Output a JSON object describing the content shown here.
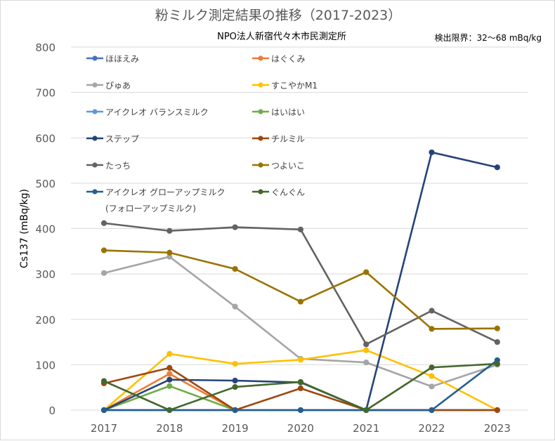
{
  "chart_data": {
    "type": "line",
    "title": "粉ミルク測定結果の推移（2017-2023）",
    "subtitle": "NPO法人新宿代々木市民測定所",
    "note": "検出限界：32〜68 mBq/kg",
    "ylabel": "Cs137 (mBq/kg)",
    "xlabel": "",
    "ylim": [
      0,
      800
    ],
    "yticks": [
      0,
      100,
      200,
      300,
      400,
      500,
      600,
      700,
      800
    ],
    "x": [
      "2017",
      "2018",
      "2019",
      "2020",
      "2021",
      "2022",
      "2023"
    ],
    "grid": "horizontal",
    "legend_position": "top-left, inside plot, two columns",
    "series": [
      {
        "name": "ほほえみ",
        "color": "#4472c4",
        "values": [
          0,
          0,
          0,
          0,
          0,
          0,
          0
        ]
      },
      {
        "name": "はぐくみ",
        "color": "#ed7d31",
        "values": [
          0,
          80,
          0,
          null,
          null,
          null,
          null
        ]
      },
      {
        "name": "ぴゅあ",
        "color": "#a5a5a5",
        "values": [
          302,
          338,
          228,
          113,
          105,
          52,
          100
        ]
      },
      {
        "name": "すこやかM1",
        "color": "#ffc000",
        "values": [
          0,
          124,
          102,
          111,
          132,
          75,
          0
        ]
      },
      {
        "name": "アイクレオ バランスミルク",
        "color": "#5b9bd5",
        "values": [
          0,
          0,
          0,
          0,
          0,
          0,
          0
        ]
      },
      {
        "name": "はいはい",
        "color": "#70ad47",
        "values": [
          0,
          53,
          0,
          null,
          null,
          null,
          null
        ]
      },
      {
        "name": "ステップ",
        "color": "#264478",
        "values": [
          0,
          67,
          65,
          61,
          0,
          568,
          535
        ]
      },
      {
        "name": "チルミル",
        "color": "#9e480e",
        "values": [
          59,
          93,
          0,
          48,
          0,
          0,
          0
        ]
      },
      {
        "name": "たっち",
        "color": "#636363",
        "values": [
          412,
          395,
          403,
          398,
          145,
          219,
          150
        ]
      },
      {
        "name": "つよいこ",
        "color": "#997300",
        "values": [
          352,
          347,
          311,
          239,
          304,
          179,
          180
        ]
      },
      {
        "name": "アイクレオ グローアップミルク (フォローアップミルク)",
        "name_lines": [
          "アイクレオ グローアップミルク",
          "(フォローアップミルク)"
        ],
        "color": "#255e91",
        "values": [
          0,
          0,
          0,
          0,
          0,
          0,
          110
        ]
      },
      {
        "name": "ぐんぐん",
        "color": "#43682b",
        "values": [
          64,
          0,
          51,
          62,
          0,
          94,
          102
        ]
      }
    ]
  }
}
